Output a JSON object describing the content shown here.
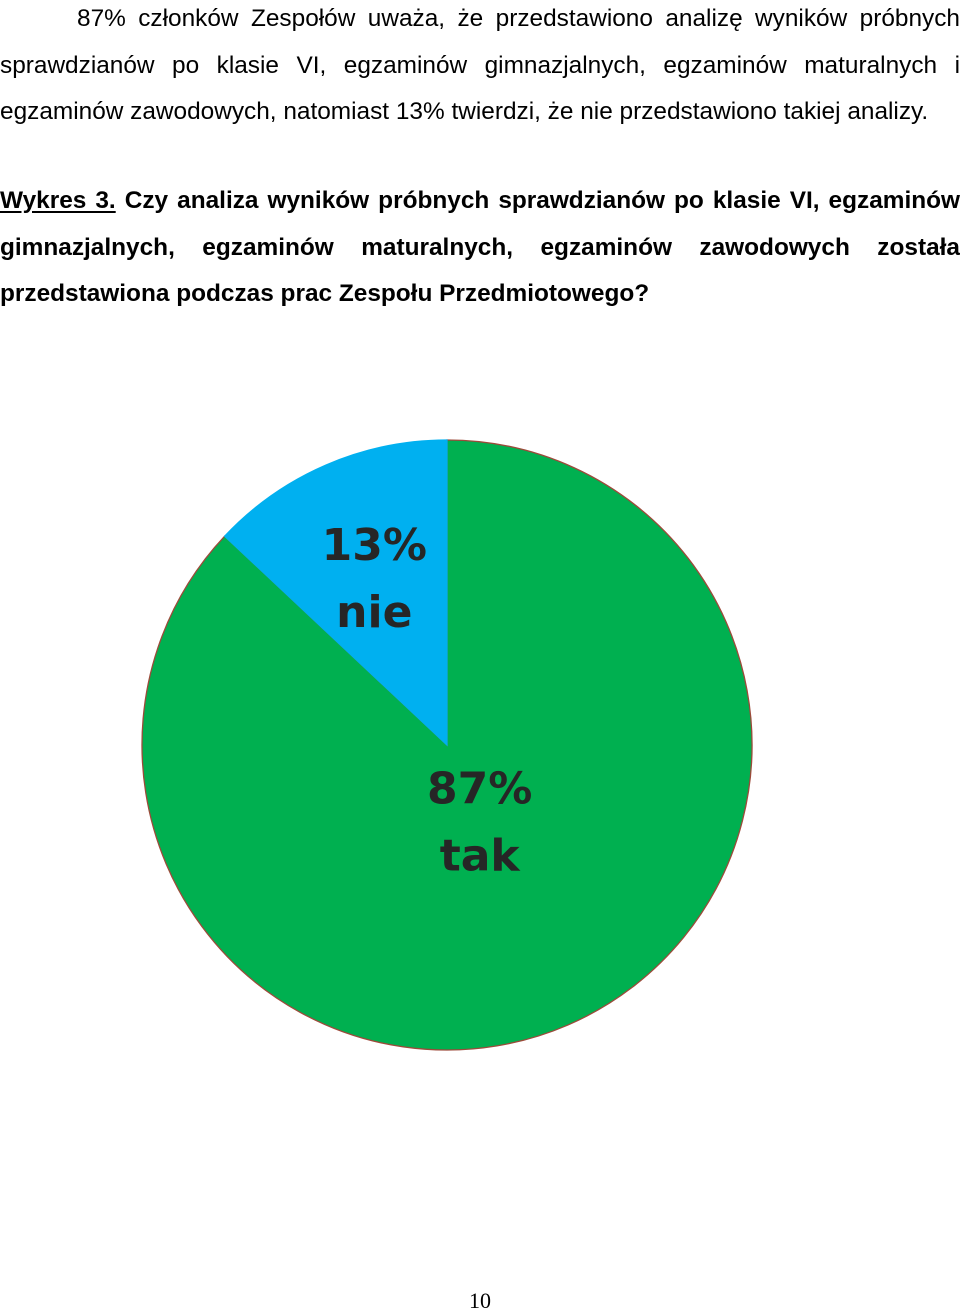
{
  "document": {
    "intro_text": "87% członków Zespołów uważa, że przedstawiono analizę wyników próbnych sprawdzianów po klasie VI, egzaminów gimnazjalnych, egzaminów maturalnych i egzaminów zawodowych, natomiast 13% twierdzi, że nie przedstawiono takiej analizy.",
    "figure_label": "Wykres 3.",
    "figure_question": "Czy analiza wyników próbnych sprawdzianów po klasie VI, egzaminów gimnazjalnych, egzaminów maturalnych, egzaminów zawodowych została przedstawiona podczas prac Zespołu Przedmiotowego?",
    "page_number": "10"
  },
  "chart_data": {
    "type": "pie",
    "title": "",
    "start_angle_deg": 0,
    "direction": "clockwise",
    "slices": [
      {
        "label": "tak",
        "value": 87,
        "value_label": "87%",
        "color": "#00b050",
        "edge_color": "#9c4a3a"
      },
      {
        "label": "nie",
        "value": 13,
        "value_label": "13%",
        "color": "#00b0f0",
        "edge_color": "#00b0f0"
      }
    ],
    "legend": "none"
  }
}
